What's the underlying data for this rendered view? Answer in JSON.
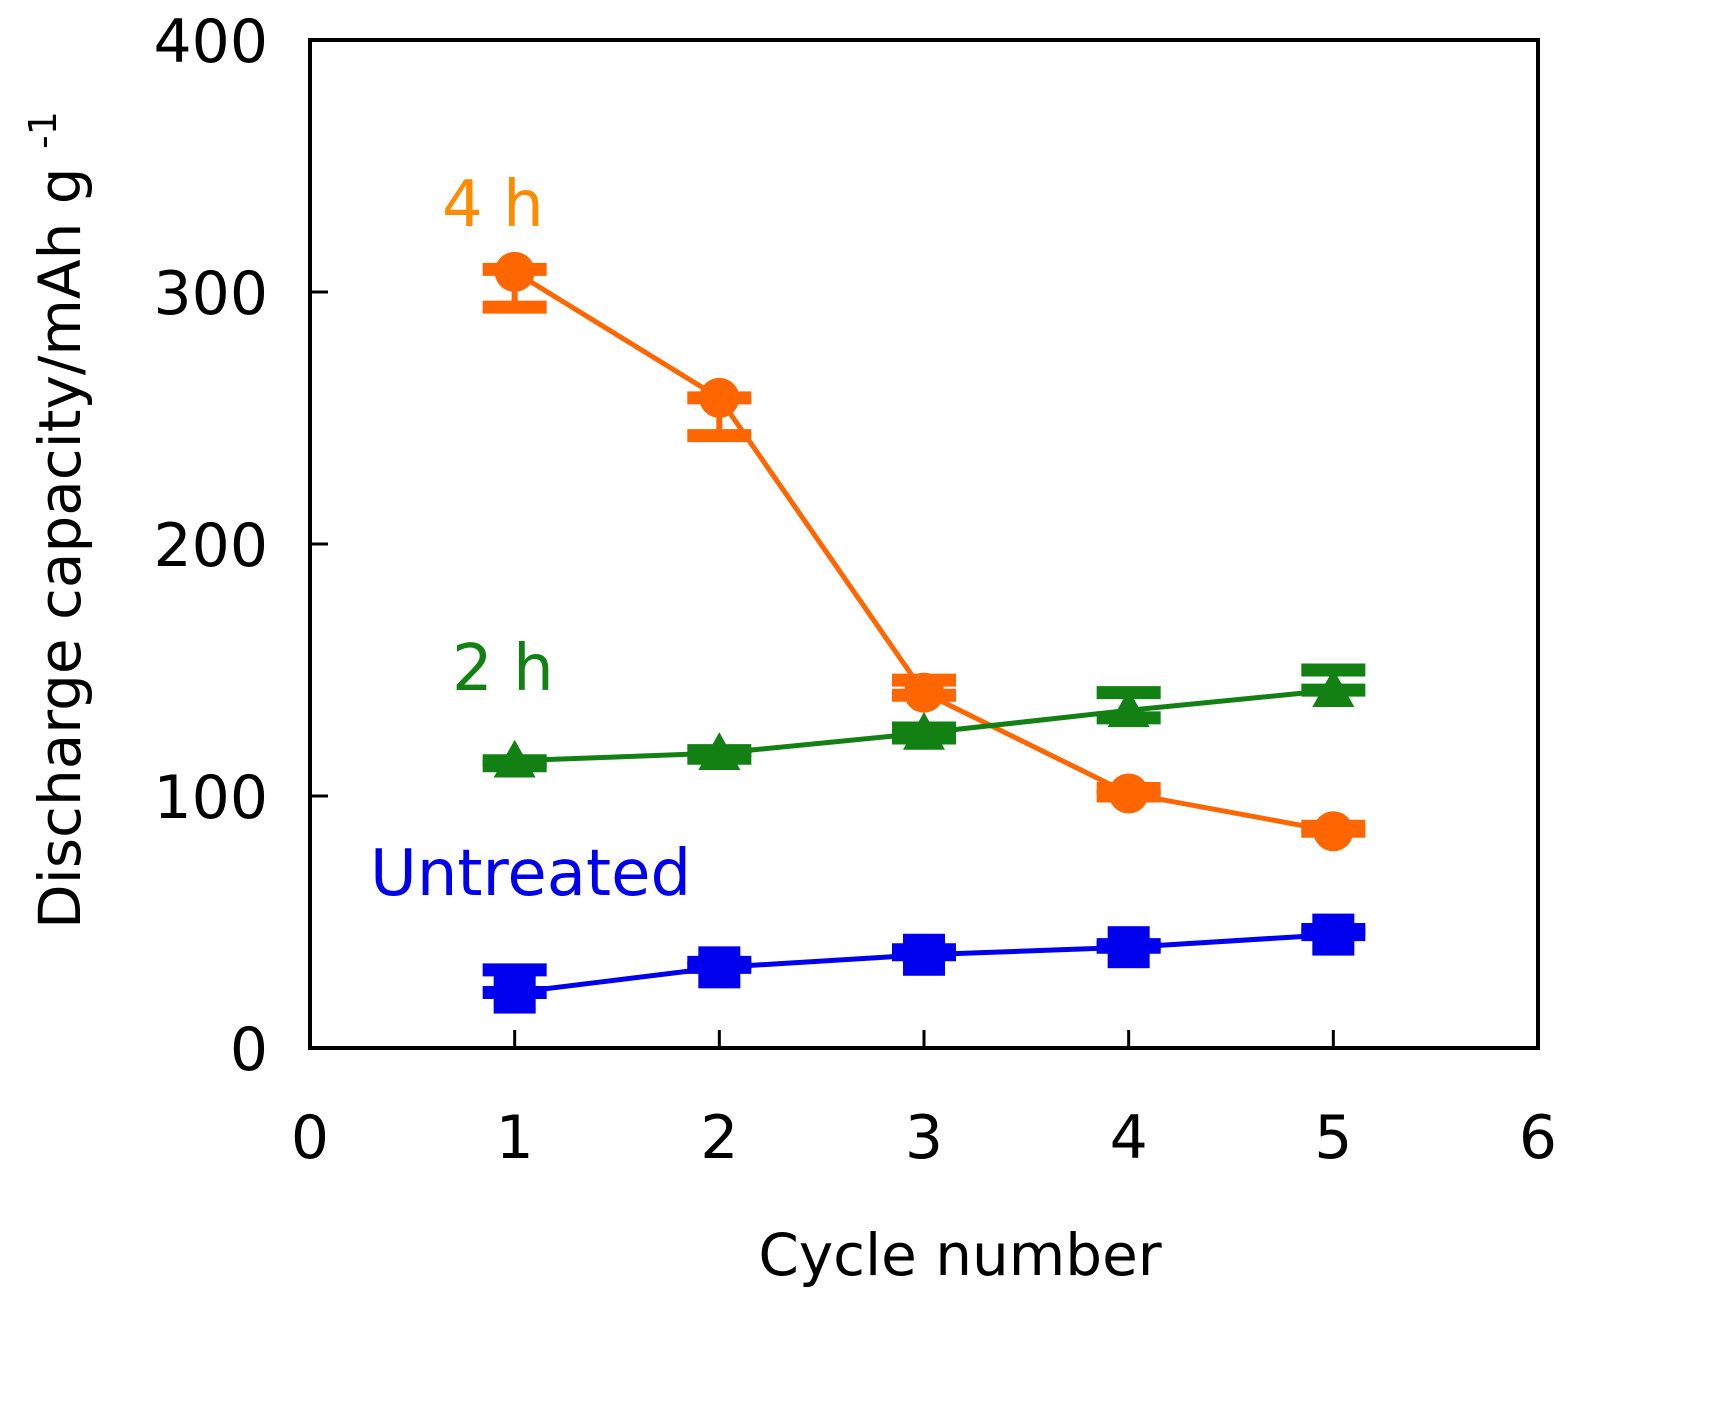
{
  "chart_data": {
    "type": "line",
    "title": "",
    "xlabel": "Cycle number",
    "ylabel": "Discharge capacity/mAh g",
    "ylabel_superscript": "-1",
    "xlim": [
      0,
      6
    ],
    "ylim": [
      0,
      400
    ],
    "xticks": [
      "0",
      "1",
      "2",
      "3",
      "4",
      "5",
      "6"
    ],
    "yticks": [
      "0",
      "100",
      "200",
      "300",
      "400"
    ],
    "grid": false,
    "legend": "none",
    "x": [
      1,
      2,
      3,
      4,
      5
    ],
    "series": [
      {
        "name": "4 h",
        "label": "4 h",
        "color": "#ff6600",
        "label_color": "#ff8c00",
        "marker": "circle",
        "values": [
          308,
          258,
          141,
          101,
          86
        ],
        "errors": [
          [
            294,
            309
          ],
          [
            243,
            258
          ],
          [
            140,
            146
          ],
          [
            100,
            103
          ],
          [
            86,
            88
          ]
        ]
      },
      {
        "name": "2 h",
        "label": "2 h",
        "color": "#128012",
        "label_color": "#128012",
        "marker": "triangle",
        "values": [
          114,
          117,
          125,
          134,
          142
        ],
        "errors": [
          [
            112,
            114
          ],
          [
            115,
            118
          ],
          [
            123,
            127
          ],
          [
            131,
            141
          ],
          [
            142,
            150
          ]
        ]
      },
      {
        "name": "Untreated",
        "label": "Untreated",
        "color": "#0000ee",
        "label_color": "#0000ee",
        "marker": "square",
        "values": [
          22,
          32,
          37,
          40,
          45
        ],
        "errors": [
          [
            22,
            31
          ],
          [
            32,
            34
          ],
          [
            37,
            39
          ],
          [
            40,
            41
          ],
          [
            45,
            47
          ]
        ]
      }
    ]
  }
}
